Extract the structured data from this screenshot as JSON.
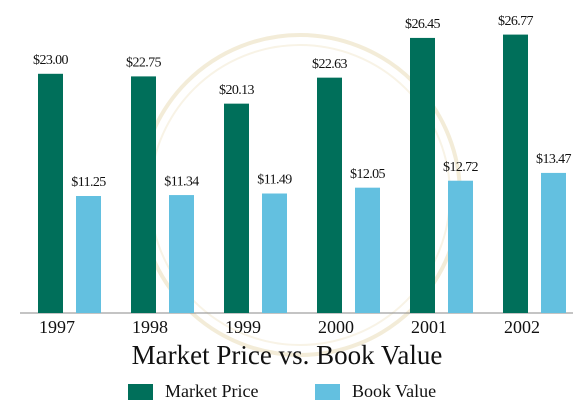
{
  "chart_data": {
    "type": "bar",
    "title": "Market Price vs. Book Value",
    "categories": [
      "1997",
      "1998",
      "1999",
      "2000",
      "2001",
      "2002"
    ],
    "series": [
      {
        "name": "Market Price",
        "color": "#006f5a",
        "values": [
          23.0,
          22.75,
          20.13,
          22.63,
          26.45,
          26.77
        ],
        "value_labels": [
          "$23.00",
          "$22.75",
          "$20.13",
          "$22.63",
          "$26.45",
          "$26.77"
        ]
      },
      {
        "name": "Book Value",
        "color": "#63c0e0",
        "values": [
          11.25,
          11.34,
          11.49,
          12.05,
          12.72,
          13.47
        ],
        "value_labels": [
          "$11.25",
          "$11.34",
          "$11.49",
          "$12.05",
          "$12.72",
          "$13.47"
        ]
      }
    ]
  }
}
